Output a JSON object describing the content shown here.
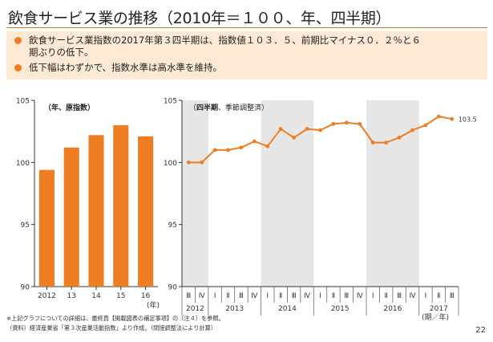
{
  "header": {
    "title": "飲食サービス業の推移（2010年＝１００、年、四半期）"
  },
  "summary": {
    "bullets": [
      "飲食サービス業指数の2017年第３四半期は、指数値１０３．５、前期比マイナス０．２％と６\n期ぶりの低下。",
      "低下幅はわずかで、指数水準は高水準を維持。"
    ]
  },
  "colors": {
    "accent": "#ef7d22",
    "summary_bg": "#fde9d4",
    "shade": "#e6e6e6"
  },
  "chart_data": [
    {
      "type": "bar",
      "note": "（年、原指数）",
      "categories": [
        "2012",
        "13",
        "14",
        "15",
        "16"
      ],
      "year_unit": "(年)",
      "values": [
        99.4,
        101.2,
        102.2,
        103.0,
        102.1
      ],
      "ylim": [
        90,
        105
      ],
      "yticks": [
        90,
        95,
        100,
        105
      ],
      "grid": false
    },
    {
      "type": "line",
      "note": "（四半期、季節調整済）",
      "note_bold": "四半期",
      "quarters": [
        "Ⅲ",
        "Ⅳ",
        "Ⅰ",
        "Ⅱ",
        "Ⅲ",
        "Ⅳ",
        "Ⅰ",
        "Ⅱ",
        "Ⅲ",
        "Ⅳ",
        "Ⅰ",
        "Ⅱ",
        "Ⅲ",
        "Ⅳ",
        "Ⅰ",
        "Ⅱ",
        "Ⅲ",
        "Ⅳ",
        "Ⅰ",
        "Ⅱ",
        "Ⅲ"
      ],
      "years": [
        {
          "label": "2012",
          "start": 0,
          "end": 1
        },
        {
          "label": "2013",
          "start": 2,
          "end": 5
        },
        {
          "label": "2014",
          "start": 6,
          "end": 9
        },
        {
          "label": "2015",
          "start": 10,
          "end": 13
        },
        {
          "label": "2016",
          "start": 14,
          "end": 17
        },
        {
          "label": "2017",
          "start": 18,
          "end": 20
        }
      ],
      "period_unit": "(期／年)",
      "shaded_years": [
        "2012",
        "2014",
        "2016"
      ],
      "values": [
        100.0,
        100.0,
        101.0,
        101.0,
        101.2,
        101.7,
        101.3,
        102.7,
        102.0,
        102.7,
        102.6,
        103.1,
        103.2,
        103.1,
        101.6,
        101.6,
        102.0,
        102.6,
        103.0,
        103.7,
        103.5
      ],
      "last_label": "103.5",
      "ylim": [
        90,
        105
      ],
      "yticks": [
        90,
        95,
        100,
        105
      ],
      "grid": false
    }
  ],
  "footer": {
    "notes": [
      "※上記グラフについての詳細は、最終頁【掲載図表の補足事項】の（注４）を参照。",
      "（資料）経済産業省「第３次産業活動指数」より作成。（間接調整法により計算）"
    ],
    "page_number": "22"
  }
}
